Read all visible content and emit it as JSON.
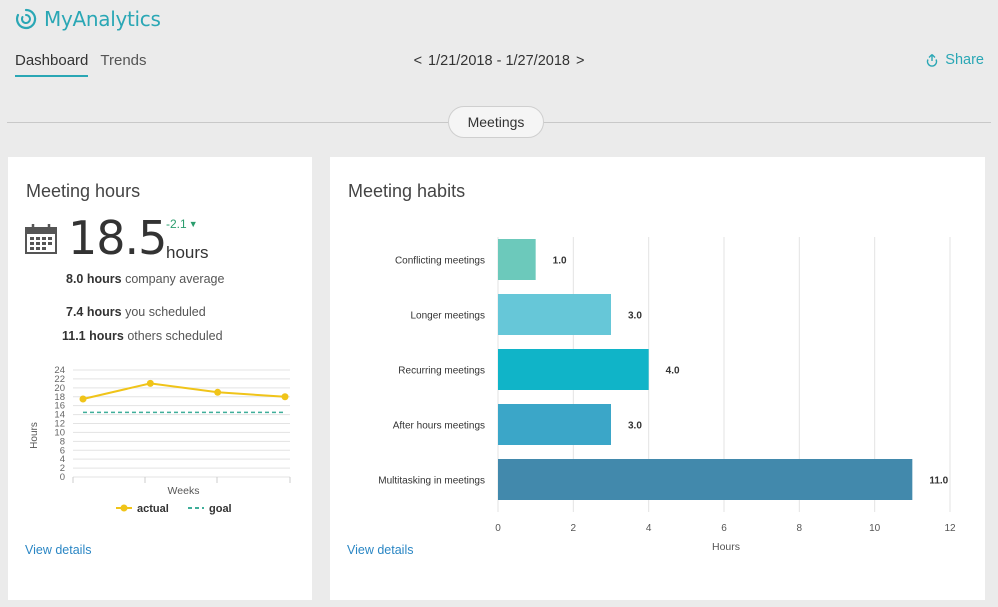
{
  "app": {
    "title": "MyAnalytics",
    "logo_icon": "myanalytics-logo-icon"
  },
  "tabs": [
    {
      "label": "Dashboard",
      "active": true
    },
    {
      "label": "Trends",
      "active": false
    }
  ],
  "date_range": {
    "prev": "<",
    "label": "1/21/2018 - 1/27/2018",
    "next": ">"
  },
  "share": {
    "label": "Share",
    "icon": "share-icon"
  },
  "section_pill": "Meetings",
  "meeting_hours": {
    "title": "Meeting hours",
    "value": "18.5",
    "unit": "hours",
    "delta": "-2.1",
    "delta_color": "#2a9d6d",
    "company_average_value": "8.0 hours",
    "company_average_label": "company average",
    "you_scheduled_value": "7.4 hours",
    "you_scheduled_label": "you scheduled",
    "others_scheduled_value": "11.1 hours",
    "others_scheduled_label": "others scheduled",
    "view_details": "View details"
  },
  "meeting_habits": {
    "title": "Meeting habits",
    "view_details": "View details"
  },
  "chart_data": [
    {
      "type": "line",
      "ylabel": "Hours",
      "xlabel": "Weeks",
      "ylim": [
        0,
        24
      ],
      "yticks": [
        0,
        2,
        4,
        6,
        8,
        10,
        12,
        14,
        16,
        18,
        20,
        22,
        24
      ],
      "x": [
        1,
        2,
        3,
        4
      ],
      "series": [
        {
          "name": "actual",
          "values": [
            17.5,
            21,
            19,
            18
          ],
          "color": "#f0c419",
          "style": "solid"
        },
        {
          "name": "goal",
          "values": [
            14.5,
            14.5,
            14.5,
            14.5
          ],
          "color": "#3fae9a",
          "style": "dashed"
        }
      ],
      "grid": true,
      "legend": "bottom"
    },
    {
      "type": "bar",
      "orientation": "horizontal",
      "categories": [
        "Conflicting meetings",
        "Longer meetings",
        "Recurring meetings",
        "After hours meetings",
        "Multitasking in meetings"
      ],
      "values": [
        1.0,
        3.0,
        4.0,
        3.0,
        11.0
      ],
      "value_labels": [
        "1.0",
        "3.0",
        "4.0",
        "3.0",
        "11.0"
      ],
      "colors": [
        "#6cc9bb",
        "#66c7d8",
        "#10b4c8",
        "#3ba6c8",
        "#4289ac"
      ],
      "xlabel": "Hours",
      "xlim": [
        0,
        12
      ],
      "xticks": [
        0,
        2,
        4,
        6,
        8,
        10,
        12
      ],
      "grid": true
    }
  ]
}
